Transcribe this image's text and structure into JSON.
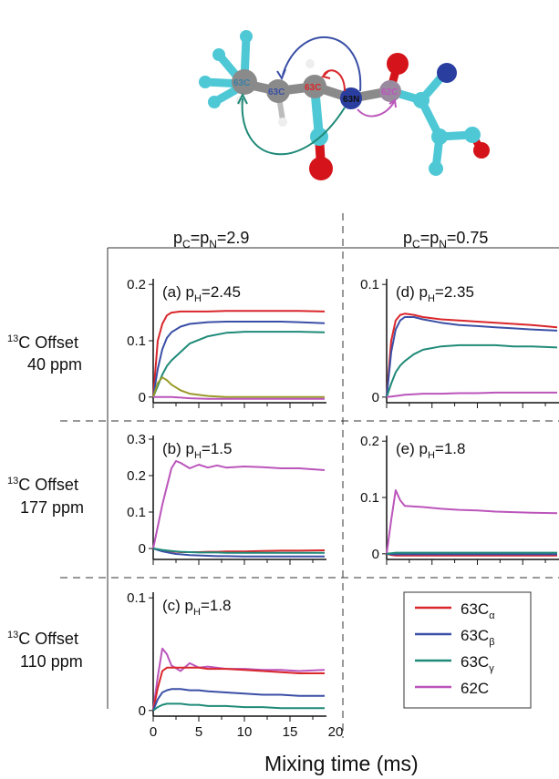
{
  "molecule": {
    "atom_labels": [
      "63C",
      "63C",
      "63C",
      "63N",
      "62C"
    ]
  },
  "layout_labels": {
    "col1_header": {
      "p": "p",
      "sub1": "C",
      "eq1": "=p",
      "sub2": "N",
      "val": "=2.9"
    },
    "col2_header": {
      "p": "p",
      "sub1": "C",
      "eq1": "=p",
      "sub2": "N",
      "val": "=0.75"
    },
    "rows": [
      {
        "sup": "13",
        "line1": "C Offset",
        "line2": "40 ppm"
      },
      {
        "sup": "13",
        "line1": "C Offset",
        "line2": "177 ppm"
      },
      {
        "sup": "13",
        "line1": "C Offset",
        "line2": "110 ppm"
      }
    ],
    "xlabel": "Mixing time (ms)"
  },
  "colors": {
    "63Ca": "#d9262b",
    "63Cb": "#3a4fa6",
    "63Cg": "#1f8a78",
    "62C": "#bb55bb",
    "extra_a": "#9a9a2a",
    "atom_cyan": "#4fc8d6",
    "atom_gray": "#8a8a8a",
    "atom_red": "#d4141a",
    "atom_blue": "#2a3ea0"
  },
  "legend": {
    "entries": [
      {
        "key": "63Ca",
        "main": "63C",
        "sub": "α",
        "color": "#d9262b"
      },
      {
        "key": "63Cb",
        "main": "63C",
        "sub": "β",
        "color": "#3a4fa6"
      },
      {
        "key": "63Cg",
        "main": "63C",
        "sub": "γ",
        "color": "#1f8a78"
      },
      {
        "key": "62C",
        "main": "62C",
        "sub": "",
        "color": "#bb55bb"
      }
    ]
  },
  "chart_data": [
    {
      "id": "a",
      "type": "line",
      "label": {
        "prefix": "(a) p",
        "sub": "H",
        "val": "=2.45"
      },
      "xlim": [
        0,
        19
      ],
      "ylim": [
        -0.01,
        0.21
      ],
      "yticks": [
        0,
        0.1,
        0.2
      ],
      "yticklabels": [
        "0",
        "0.1",
        "0.2"
      ],
      "x": [
        0,
        0.5,
        1,
        1.5,
        2,
        3,
        4,
        6,
        8,
        10,
        12,
        14,
        16,
        18.8
      ],
      "series": [
        {
          "key": "63Ca",
          "values": [
            0,
            0.1,
            0.13,
            0.145,
            0.15,
            0.152,
            0.152,
            0.152,
            0.153,
            0.153,
            0.153,
            0.153,
            0.153,
            0.152
          ]
        },
        {
          "key": "63Cb",
          "values": [
            0,
            0.05,
            0.085,
            0.105,
            0.115,
            0.125,
            0.13,
            0.133,
            0.134,
            0.134,
            0.134,
            0.134,
            0.133,
            0.131
          ]
        },
        {
          "key": "63Cg",
          "values": [
            0,
            0.02,
            0.04,
            0.055,
            0.065,
            0.08,
            0.095,
            0.108,
            0.114,
            0.116,
            0.116,
            0.116,
            0.116,
            0.115
          ]
        },
        {
          "key": "extra_a",
          "values": [
            0,
            0.025,
            0.035,
            0.03,
            0.022,
            0.012,
            0.006,
            0.002,
            0,
            0,
            0,
            0,
            0,
            0
          ]
        },
        {
          "key": "62C",
          "values": [
            0,
            0,
            0,
            0,
            0,
            -0.001,
            -0.002,
            -0.003,
            -0.003,
            -0.003,
            -0.003,
            -0.003,
            -0.003,
            -0.003
          ]
        }
      ]
    },
    {
      "id": "b",
      "type": "line",
      "label": {
        "prefix": "(b) p",
        "sub": "H",
        "val": "=1.5"
      },
      "xlim": [
        0,
        19
      ],
      "ylim": [
        -0.03,
        0.31
      ],
      "yticks": [
        0,
        0.1,
        0.2,
        0.3
      ],
      "yticklabels": [
        "0",
        "0.1",
        "0.2",
        "0.3"
      ],
      "x": [
        0,
        1,
        2,
        2.5,
        3,
        4,
        5,
        6,
        7,
        8,
        10,
        12,
        14,
        16,
        18.8
      ],
      "series": [
        {
          "key": "62C",
          "values": [
            0,
            0.12,
            0.22,
            0.24,
            0.235,
            0.22,
            0.23,
            0.222,
            0.228,
            0.222,
            0.225,
            0.223,
            0.22,
            0.22,
            0.215
          ]
        },
        {
          "key": "63Ca",
          "values": [
            0,
            -0.005,
            -0.008,
            -0.009,
            -0.01,
            -0.01,
            -0.01,
            -0.009,
            -0.009,
            -0.008,
            -0.008,
            -0.007,
            -0.006,
            -0.006,
            -0.005
          ]
        },
        {
          "key": "63Cb",
          "values": [
            0,
            -0.008,
            -0.013,
            -0.015,
            -0.016,
            -0.018,
            -0.019,
            -0.02,
            -0.021,
            -0.021,
            -0.022,
            -0.022,
            -0.022,
            -0.022,
            -0.022
          ]
        },
        {
          "key": "63Cg",
          "values": [
            0,
            -0.004,
            -0.007,
            -0.008,
            -0.009,
            -0.01,
            -0.011,
            -0.011,
            -0.011,
            -0.012,
            -0.012,
            -0.012,
            -0.012,
            -0.012,
            -0.012
          ]
        }
      ]
    },
    {
      "id": "c",
      "type": "line",
      "label": {
        "prefix": "(c) p",
        "sub": "H",
        "val": "=1.8"
      },
      "xlim": [
        0,
        19
      ],
      "ylim": [
        -0.005,
        0.105
      ],
      "yticks": [
        0,
        0.1
      ],
      "yticklabels": [
        "0",
        "0.1"
      ],
      "xticks": [
        0,
        5,
        10,
        15,
        20
      ],
      "xticklabels": [
        "0",
        "5",
        "10",
        "15",
        "20"
      ],
      "x": [
        0,
        0.5,
        1,
        1.5,
        2,
        3,
        4,
        5,
        6,
        8,
        10,
        12,
        14,
        16,
        18.8
      ],
      "series": [
        {
          "key": "62C",
          "values": [
            0,
            0.03,
            0.055,
            0.05,
            0.04,
            0.035,
            0.042,
            0.038,
            0.039,
            0.037,
            0.037,
            0.036,
            0.036,
            0.035,
            0.036
          ]
        },
        {
          "key": "63Ca",
          "values": [
            0,
            0.02,
            0.035,
            0.038,
            0.038,
            0.038,
            0.038,
            0.038,
            0.037,
            0.037,
            0.036,
            0.035,
            0.034,
            0.033,
            0.033
          ]
        },
        {
          "key": "63Cb",
          "values": [
            0,
            0.01,
            0.016,
            0.018,
            0.019,
            0.019,
            0.018,
            0.018,
            0.017,
            0.016,
            0.015,
            0.014,
            0.014,
            0.013,
            0.013
          ]
        },
        {
          "key": "63Cg",
          "values": [
            0,
            0.003,
            0.005,
            0.006,
            0.006,
            0.006,
            0.005,
            0.005,
            0.004,
            0.004,
            0.003,
            0.003,
            0.002,
            0.002,
            0.002
          ]
        }
      ]
    },
    {
      "id": "d",
      "type": "line",
      "label": {
        "prefix": "(d) p",
        "sub": "H",
        "val": "=2.35"
      },
      "xlim": [
        0,
        19
      ],
      "ylim": [
        -0.005,
        0.105
      ],
      "yticks": [
        0,
        0.1
      ],
      "yticklabels": [
        "0",
        "0.1"
      ],
      "x": [
        0,
        0.5,
        1,
        1.5,
        2,
        3,
        4,
        6,
        8,
        10,
        12,
        14,
        16,
        18.8
      ],
      "series": [
        {
          "key": "63Ca",
          "values": [
            0,
            0.05,
            0.068,
            0.073,
            0.074,
            0.073,
            0.071,
            0.069,
            0.068,
            0.067,
            0.066,
            0.065,
            0.064,
            0.062
          ]
        },
        {
          "key": "63Cb",
          "values": [
            0,
            0.04,
            0.06,
            0.068,
            0.071,
            0.071,
            0.069,
            0.066,
            0.064,
            0.063,
            0.062,
            0.061,
            0.06,
            0.059
          ]
        },
        {
          "key": "63Cg",
          "values": [
            0,
            0.012,
            0.022,
            0.028,
            0.032,
            0.038,
            0.042,
            0.045,
            0.046,
            0.046,
            0.046,
            0.045,
            0.045,
            0.044
          ]
        },
        {
          "key": "62C",
          "values": [
            0,
            0.0005,
            0.001,
            0.0015,
            0.002,
            0.0025,
            0.003,
            0.003,
            0.0035,
            0.0035,
            0.004,
            0.004,
            0.004,
            0.004
          ]
        }
      ]
    },
    {
      "id": "e",
      "type": "line",
      "label": {
        "prefix": "(e) p",
        "sub": "H",
        "val": "=1.8"
      },
      "xlim": [
        0,
        19
      ],
      "ylim": [
        -0.01,
        0.21
      ],
      "yticks": [
        0,
        0.1,
        0.2
      ],
      "yticklabels": [
        "0",
        "0.1",
        "0.2"
      ],
      "x": [
        0,
        0.5,
        1,
        1.5,
        2,
        3,
        4,
        6,
        8,
        10,
        12,
        14,
        16,
        18.8
      ],
      "series": [
        {
          "key": "62C",
          "values": [
            0,
            0.06,
            0.113,
            0.095,
            0.085,
            0.084,
            0.083,
            0.08,
            0.078,
            0.077,
            0.075,
            0.074,
            0.073,
            0.072
          ]
        },
        {
          "key": "63Ca",
          "values": [
            0,
            -0.002,
            -0.003,
            -0.003,
            -0.003,
            -0.003,
            -0.003,
            -0.003,
            -0.003,
            -0.003,
            -0.003,
            -0.003,
            -0.003,
            -0.003
          ]
        },
        {
          "key": "63Cb",
          "values": [
            0,
            -0.001,
            -0.001,
            -0.001,
            -0.001,
            -0.001,
            -0.001,
            -0.001,
            -0.001,
            -0.001,
            -0.001,
            -0.001,
            -0.001,
            -0.001
          ]
        },
        {
          "key": "63Cg",
          "values": [
            0,
            0.001,
            0.002,
            0.002,
            0.002,
            0.002,
            0.002,
            0.002,
            0.002,
            0.002,
            0.002,
            0.002,
            0.002,
            0.002
          ]
        }
      ]
    }
  ]
}
